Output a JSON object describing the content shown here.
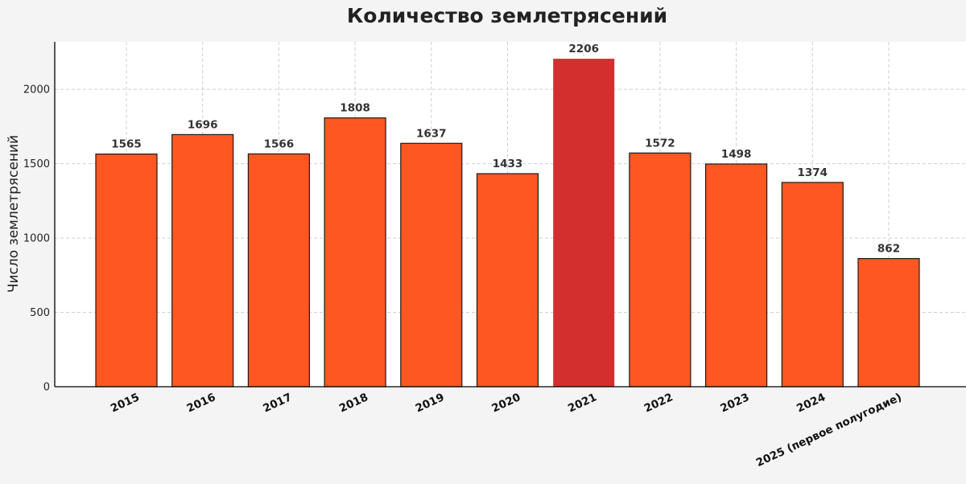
{
  "chart_data": {
    "type": "bar",
    "title": "Количество землетрясений",
    "xlabel": "",
    "ylabel": "Число землетрясений",
    "categories": [
      "2015",
      "2016",
      "2017",
      "2018",
      "2019",
      "2020",
      "2021",
      "2022",
      "2023",
      "2024",
      "2025 (первое полугодие)"
    ],
    "values": [
      1565,
      1696,
      1566,
      1808,
      1637,
      1433,
      2206,
      1572,
      1498,
      1374,
      862
    ],
    "ylim": [
      0,
      2320
    ],
    "yticks": [
      0,
      500,
      1000,
      1500,
      2000
    ],
    "grid": true,
    "colors": {
      "bar": "#ff5722",
      "highlight": "#d32f2f",
      "edge": "#1a1a1a",
      "grid": "#cfcfcf",
      "axis": "#000000",
      "plot_background": "#ffffff",
      "page_background": "#f4f4f4"
    },
    "highlight_category": "2021"
  }
}
